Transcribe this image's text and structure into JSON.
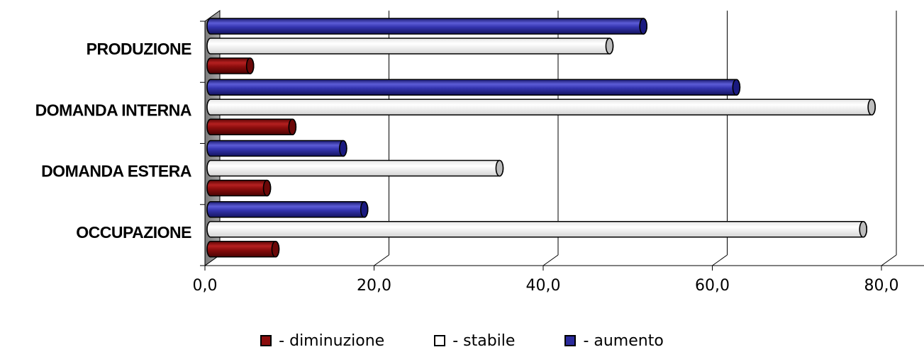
{
  "chart_data": {
    "type": "bar",
    "orientation": "horizontal",
    "style": "3d-cylinder",
    "categories": [
      "PRODUZIONE",
      "DOMANDA INTERNA",
      "DOMANDA ESTERA",
      "OCCUPAZIONE"
    ],
    "series": [
      {
        "name": "- diminuzione",
        "color": "#8b0d0d",
        "values": [
          4.5,
          9.5,
          6.5,
          7.5
        ]
      },
      {
        "name": "- stabile",
        "color": "#ffffff",
        "values": [
          47.0,
          78.0,
          34.0,
          77.0
        ]
      },
      {
        "name": "- aumento",
        "color": "#2b2b9c",
        "values": [
          51.0,
          62.0,
          15.5,
          18.0
        ]
      }
    ],
    "xlim": [
      0,
      80
    ],
    "xticks": [
      0,
      20,
      40,
      60,
      80
    ],
    "xtick_labels": [
      "0,0",
      "20,0",
      "40,0",
      "60,0",
      "80,0"
    ],
    "grid": true,
    "legend_position": "bottom"
  }
}
